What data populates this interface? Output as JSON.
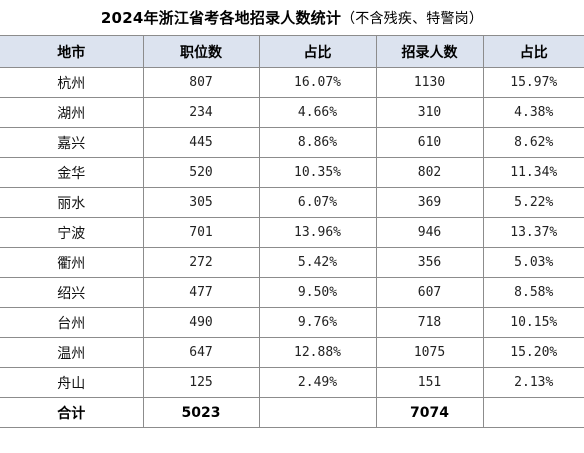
{
  "title": {
    "main": "2024年浙江省考各地招录人数统计",
    "note": "（不含残疾、特警岗）"
  },
  "columns": [
    "地市",
    "职位数",
    "占比",
    "招录人数",
    "占比"
  ],
  "rows": [
    {
      "city": "杭州",
      "positions": "807",
      "positions_pct": "16.07%",
      "hires": "1130",
      "hires_pct": "15.97%"
    },
    {
      "city": "湖州",
      "positions": "234",
      "positions_pct": "4.66%",
      "hires": "310",
      "hires_pct": "4.38%"
    },
    {
      "city": "嘉兴",
      "positions": "445",
      "positions_pct": "8.86%",
      "hires": "610",
      "hires_pct": "8.62%"
    },
    {
      "city": "金华",
      "positions": "520",
      "positions_pct": "10.35%",
      "hires": "802",
      "hires_pct": "11.34%"
    },
    {
      "city": "丽水",
      "positions": "305",
      "positions_pct": "6.07%",
      "hires": "369",
      "hires_pct": "5.22%"
    },
    {
      "city": "宁波",
      "positions": "701",
      "positions_pct": "13.96%",
      "hires": "946",
      "hires_pct": "13.37%"
    },
    {
      "city": "衢州",
      "positions": "272",
      "positions_pct": "5.42%",
      "hires": "356",
      "hires_pct": "5.03%"
    },
    {
      "city": "绍兴",
      "positions": "477",
      "positions_pct": "9.50%",
      "hires": "607",
      "hires_pct": "8.58%"
    },
    {
      "city": "台州",
      "positions": "490",
      "positions_pct": "9.76%",
      "hires": "718",
      "hires_pct": "10.15%"
    },
    {
      "city": "温州",
      "positions": "647",
      "positions_pct": "12.88%",
      "hires": "1075",
      "hires_pct": "15.20%"
    },
    {
      "city": "舟山",
      "positions": "125",
      "positions_pct": "2.49%",
      "hires": "151",
      "hires_pct": "2.13%"
    }
  ],
  "total": {
    "label": "合计",
    "positions": "5023",
    "positions_pct": "",
    "hires": "7074",
    "hires_pct": ""
  },
  "colors": {
    "header_bg": "#dce3ef",
    "border": "#8c8c8c"
  }
}
